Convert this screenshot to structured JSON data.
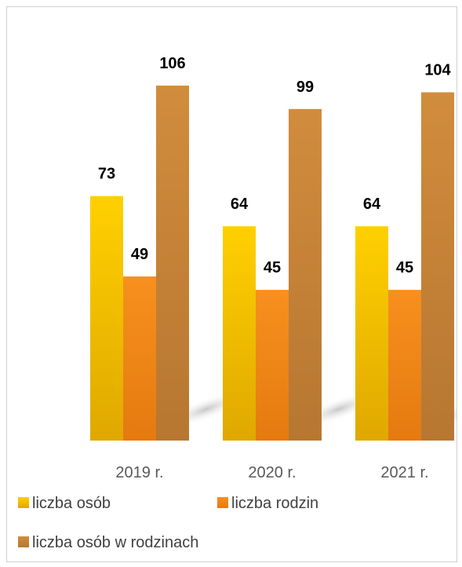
{
  "chart_data": {
    "type": "bar",
    "categories": [
      "2019 r.",
      "2020 r.",
      "2021 r."
    ],
    "series": [
      {
        "name": "liczba osób",
        "values": [
          73,
          64,
          64
        ],
        "color": "#f5b800"
      },
      {
        "name": "liczba rodzin",
        "values": [
          49,
          45,
          45
        ],
        "color": "#f08419"
      },
      {
        "name": "liczba osób w rodzinach",
        "values": [
          106,
          99,
          104
        ],
        "color": "#c8843a"
      }
    ],
    "data_labels": true,
    "legend_position": "bottom",
    "grid": false,
    "ylim": [
      0,
      106
    ]
  }
}
